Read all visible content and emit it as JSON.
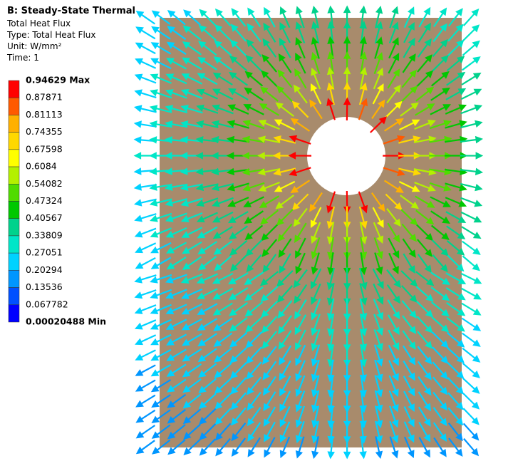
{
  "header": {
    "title": "B: Steady-State Thermal",
    "lines": [
      "Total Heat Flux",
      "Type: Total Heat Flux",
      "Unit: W/mm²",
      "Time: 1"
    ]
  },
  "legend": {
    "labels": [
      "0.94629 Max",
      "0.87871",
      "0.81113",
      "0.74355",
      "0.67598",
      "0.6084",
      "0.54082",
      "0.47324",
      "0.40567",
      "0.33809",
      "0.27051",
      "0.20294",
      "0.13536",
      "0.067782",
      "0.00020488 Min"
    ],
    "colors": [
      "#ff0000",
      "#ff5a00",
      "#ffb000",
      "#ffd800",
      "#ffff00",
      "#b4f000",
      "#50dc00",
      "#00c800",
      "#00d28c",
      "#00e6c8",
      "#00d2ff",
      "#0096ff",
      "#0050ff",
      "#0000ff"
    ]
  }
}
